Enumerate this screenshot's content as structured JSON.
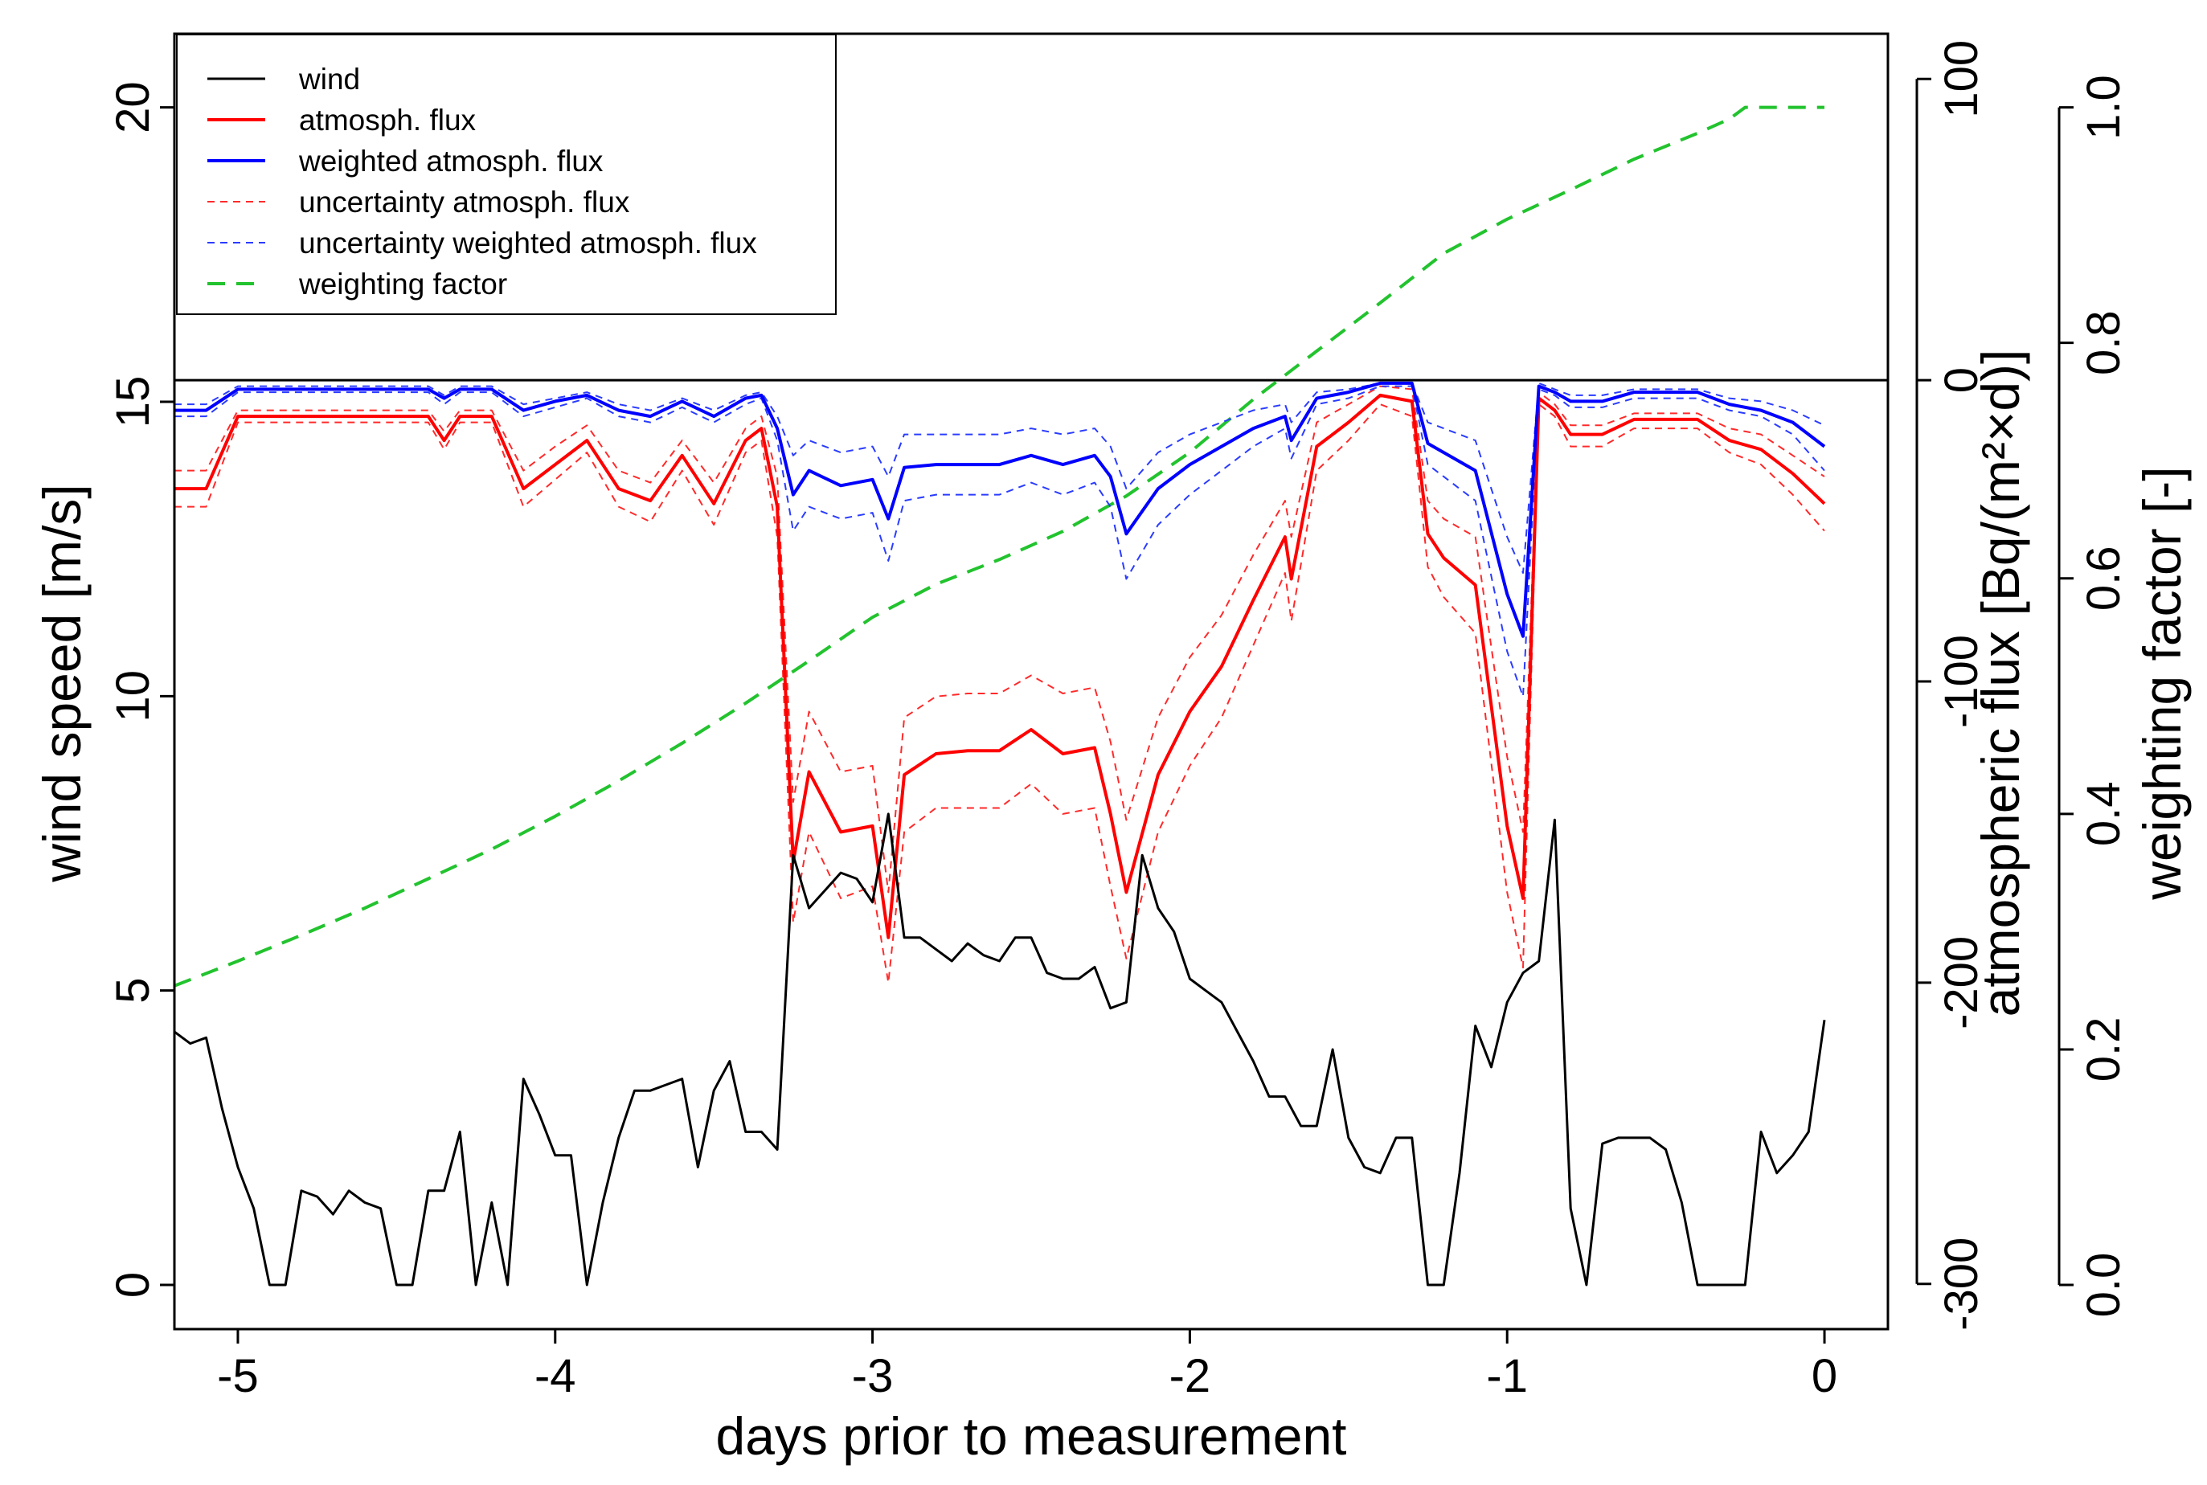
{
  "chart_data": {
    "type": "line",
    "xlabel": "days prior to measurement",
    "ylabel": "wind speed [m/s]",
    "y2label": "atmospheric flux [Bq/(m²×d)]",
    "y3label": "weighting factor [-]",
    "xlim": [
      -5.2,
      0.2
    ],
    "ylim": [
      -0.75,
      21.25
    ],
    "y2lim": [
      -315,
      115
    ],
    "y3lim": [
      0,
      1
    ],
    "x_ticks": [
      -5,
      -4,
      -3,
      -2,
      -1,
      0
    ],
    "y_ticks": [
      0,
      5,
      10,
      15,
      20
    ],
    "y2_ticks": [
      -300,
      -200,
      -100,
      0,
      100
    ],
    "y3_ticks": [
      0.0,
      0.2,
      0.4,
      0.6,
      0.8,
      1.0
    ],
    "x_tick_labels": [
      "-5",
      "-4",
      "-3",
      "-2",
      "-1",
      "0"
    ],
    "y_tick_labels": [
      "0",
      "5",
      "10",
      "15",
      "20"
    ],
    "y2_tick_labels": [
      "-300",
      "-200",
      "-100",
      "0",
      "100"
    ],
    "y3_tick_labels": [
      "0.0",
      "0.2",
      "0.4",
      "0.6",
      "0.8",
      "1.0"
    ],
    "reference_line": {
      "axis": "y2",
      "value": 0
    },
    "legend": {
      "position": "top-left",
      "entries": [
        "wind",
        "atmosph. flux",
        "weighted atmosph. flux",
        "uncertainty atmosph. flux",
        "uncertainty weighted atmosph. flux",
        "weighting factor"
      ]
    },
    "series": [
      {
        "name": "weighting factor",
        "axis": "y3",
        "color": "#22c32e",
        "dash": "dashed-long",
        "width": 4,
        "x": [
          -5.2,
          -5.0,
          -4.8,
          -4.6,
          -4.4,
          -4.2,
          -4.0,
          -3.8,
          -3.6,
          -3.4,
          -3.2,
          -3.0,
          -2.8,
          -2.6,
          -2.4,
          -2.2,
          -2.0,
          -1.8,
          -1.6,
          -1.4,
          -1.2,
          -1.0,
          -0.8,
          -0.6,
          -0.4,
          -0.3,
          -0.25,
          0.0
        ],
        "y": [
          0.254,
          0.275,
          0.297,
          0.32,
          0.345,
          0.37,
          0.398,
          0.428,
          0.46,
          0.494,
          0.53,
          0.567,
          0.595,
          0.616,
          0.64,
          0.67,
          0.707,
          0.752,
          0.793,
          0.834,
          0.876,
          0.905,
          0.93,
          0.956,
          0.978,
          0.99,
          1.0,
          1.0
        ]
      },
      {
        "name": "uncertainty atmosph. flux",
        "axis": "y2",
        "color": "#ff2a2a",
        "dash": "dashed-fine",
        "width": 2,
        "x": [
          -5.2,
          -5.1,
          -5.0,
          -4.8,
          -4.6,
          -4.4,
          -4.35,
          -4.3,
          -4.2,
          -4.1,
          -4.0,
          -3.9,
          -3.8,
          -3.7,
          -3.6,
          -3.5,
          -3.4,
          -3.35,
          -3.3,
          -3.25,
          -3.2,
          -3.1,
          -3.0,
          -2.95,
          -2.9,
          -2.8,
          -2.7,
          -2.6,
          -2.5,
          -2.4,
          -2.3,
          -2.25,
          -2.2,
          -2.1,
          -2.0,
          -1.9,
          -1.8,
          -1.7,
          -1.68,
          -1.6,
          -1.5,
          -1.4,
          -1.3,
          -1.25,
          -1.2,
          -1.1,
          -1.0,
          -0.95,
          -0.9,
          -0.85,
          -0.8,
          -0.7,
          -0.6,
          -0.5,
          -0.4,
          -0.3,
          -0.2,
          -0.1,
          0.0
        ],
        "y": [
          -30,
          -30,
          -10,
          -10,
          -10,
          -10,
          -17,
          -10,
          -10,
          -30,
          -22,
          -15,
          -30,
          -34,
          -20,
          -34,
          -16,
          -12,
          -32,
          -140,
          -110,
          -130,
          -128,
          -170,
          -112,
          -105,
          -104,
          -104,
          -98,
          -104,
          -102,
          -120,
          -146,
          -112,
          -92,
          -78,
          -58,
          -40,
          -52,
          -14,
          -8,
          -2,
          -3,
          -40,
          -46,
          -52,
          -125,
          -150,
          -4,
          -8,
          -15,
          -15,
          -11,
          -11,
          -11,
          -16,
          -18,
          -25,
          -32
        ]
      },
      {
        "name": "uncertainty atmosph. flux",
        "axis": "y2",
        "color": "#ff2a2a",
        "dash": "dashed-fine",
        "width": 2,
        "x": [
          -5.2,
          -5.1,
          -5.0,
          -4.8,
          -4.6,
          -4.4,
          -4.35,
          -4.3,
          -4.2,
          -4.1,
          -4.0,
          -3.9,
          -3.8,
          -3.7,
          -3.6,
          -3.5,
          -3.4,
          -3.35,
          -3.3,
          -3.25,
          -3.2,
          -3.1,
          -3.0,
          -2.95,
          -2.9,
          -2.8,
          -2.7,
          -2.6,
          -2.5,
          -2.4,
          -2.3,
          -2.25,
          -2.2,
          -2.1,
          -2.0,
          -1.9,
          -1.8,
          -1.7,
          -1.68,
          -1.6,
          -1.5,
          -1.4,
          -1.3,
          -1.25,
          -1.2,
          -1.1,
          -1.0,
          -0.95,
          -0.9,
          -0.85,
          -0.8,
          -0.7,
          -0.6,
          -0.5,
          -0.4,
          -0.3,
          -0.2,
          -0.1,
          0.0
        ],
        "y": [
          -42,
          -42,
          -14,
          -14,
          -14,
          -14,
          -23,
          -14,
          -14,
          -42,
          -33,
          -24,
          -42,
          -47,
          -30,
          -48,
          -24,
          -20,
          -52,
          -180,
          -150,
          -172,
          -168,
          -200,
          -150,
          -142,
          -142,
          -142,
          -134,
          -144,
          -142,
          -168,
          -192,
          -150,
          -128,
          -112,
          -88,
          -64,
          -80,
          -30,
          -20,
          -8,
          -12,
          -62,
          -72,
          -84,
          -170,
          -195,
          -8,
          -12,
          -22,
          -22,
          -16,
          -16,
          -16,
          -24,
          -28,
          -38,
          -50
        ]
      },
      {
        "name": "uncertainty weighted atmosph. flux",
        "axis": "y2",
        "color": "#2a3cff",
        "dash": "dashed-fine",
        "width": 2,
        "x": [
          -5.2,
          -5.1,
          -5.0,
          -4.8,
          -4.6,
          -4.4,
          -4.35,
          -4.3,
          -4.2,
          -4.1,
          -4.0,
          -3.9,
          -3.8,
          -3.7,
          -3.6,
          -3.5,
          -3.4,
          -3.35,
          -3.3,
          -3.25,
          -3.2,
          -3.1,
          -3.0,
          -2.95,
          -2.9,
          -2.8,
          -2.7,
          -2.6,
          -2.5,
          -2.4,
          -2.3,
          -2.25,
          -2.2,
          -2.1,
          -2.0,
          -1.9,
          -1.8,
          -1.7,
          -1.68,
          -1.6,
          -1.5,
          -1.4,
          -1.3,
          -1.25,
          -1.2,
          -1.1,
          -1.0,
          -0.95,
          -0.9,
          -0.85,
          -0.8,
          -0.7,
          -0.6,
          -0.5,
          -0.4,
          -0.3,
          -0.2,
          -0.1,
          0.0
        ],
        "y": [
          -8,
          -8,
          -2,
          -2,
          -2,
          -2,
          -5,
          -2,
          -2,
          -8,
          -6,
          -4,
          -8,
          -10,
          -6,
          -10,
          -5,
          -4,
          -12,
          -25,
          -20,
          -24,
          -22,
          -32,
          -18,
          -18,
          -18,
          -18,
          -16,
          -18,
          -16,
          -22,
          -36,
          -24,
          -18,
          -14,
          -10,
          -8,
          -14,
          -4,
          -3,
          -1,
          -1,
          -14,
          -16,
          -20,
          -52,
          -64,
          -1,
          -3,
          -5,
          -5,
          -3,
          -3,
          -3,
          -6,
          -7,
          -10,
          -15
        ]
      },
      {
        "name": "uncertainty weighted atmosph. flux",
        "axis": "y2",
        "color": "#2a3cff",
        "dash": "dashed-fine",
        "width": 2,
        "x": [
          -5.2,
          -5.1,
          -5.0,
          -4.8,
          -4.6,
          -4.4,
          -4.35,
          -4.3,
          -4.2,
          -4.1,
          -4.0,
          -3.9,
          -3.8,
          -3.7,
          -3.6,
          -3.5,
          -3.4,
          -3.35,
          -3.3,
          -3.25,
          -3.2,
          -3.1,
          -3.0,
          -2.95,
          -2.9,
          -2.8,
          -2.7,
          -2.6,
          -2.5,
          -2.4,
          -2.3,
          -2.25,
          -2.2,
          -2.1,
          -2.0,
          -1.9,
          -1.8,
          -1.7,
          -1.68,
          -1.6,
          -1.5,
          -1.4,
          -1.3,
          -1.25,
          -1.2,
          -1.1,
          -1.0,
          -0.95,
          -0.9,
          -0.85,
          -0.8,
          -0.7,
          -0.6,
          -0.5,
          -0.4,
          -0.3,
          -0.2,
          -0.1,
          0.0
        ],
        "y": [
          -12,
          -12,
          -4,
          -4,
          -4,
          -4,
          -8,
          -4,
          -4,
          -12,
          -9,
          -6,
          -12,
          -14,
          -9,
          -14,
          -8,
          -6,
          -20,
          -50,
          -42,
          -46,
          -44,
          -60,
          -40,
          -38,
          -38,
          -38,
          -34,
          -38,
          -34,
          -42,
          -66,
          -48,
          -38,
          -30,
          -22,
          -16,
          -26,
          -8,
          -6,
          -2,
          -2,
          -28,
          -32,
          -40,
          -90,
          -105,
          -3,
          -5,
          -9,
          -9,
          -6,
          -6,
          -6,
          -10,
          -12,
          -18,
          -30
        ]
      },
      {
        "name": "atmosph. flux",
        "axis": "y2",
        "color": "#ff0000",
        "dash": "solid",
        "width": 4,
        "x": [
          -5.2,
          -5.1,
          -5.0,
          -4.8,
          -4.6,
          -4.4,
          -4.35,
          -4.3,
          -4.2,
          -4.1,
          -4.0,
          -3.9,
          -3.8,
          -3.7,
          -3.6,
          -3.5,
          -3.4,
          -3.35,
          -3.3,
          -3.25,
          -3.2,
          -3.1,
          -3.0,
          -2.95,
          -2.9,
          -2.8,
          -2.7,
          -2.6,
          -2.5,
          -2.4,
          -2.3,
          -2.25,
          -2.2,
          -2.1,
          -2.0,
          -1.9,
          -1.8,
          -1.7,
          -1.68,
          -1.6,
          -1.5,
          -1.4,
          -1.3,
          -1.25,
          -1.2,
          -1.1,
          -1.0,
          -0.95,
          -0.9,
          -0.85,
          -0.8,
          -0.7,
          -0.6,
          -0.5,
          -0.4,
          -0.3,
          -0.2,
          -0.1,
          0.0
        ],
        "y": [
          -36,
          -36,
          -12,
          -12,
          -12,
          -12,
          -20,
          -12,
          -12,
          -36,
          -28,
          -20,
          -36,
          -40,
          -25,
          -41,
          -20,
          -16,
          -42,
          -160,
          -130,
          -150,
          -148,
          -185,
          -131,
          -124,
          -123,
          -123,
          -116,
          -124,
          -122,
          -144,
          -170,
          -131,
          -110,
          -95,
          -73,
          -52,
          -66,
          -22,
          -14,
          -5,
          -7,
          -51,
          -59,
          -68,
          -148,
          -172,
          -6,
          -10,
          -18,
          -18,
          -13,
          -13,
          -13,
          -20,
          -23,
          -31,
          -41
        ]
      },
      {
        "name": "weighted atmosph. flux",
        "axis": "y2",
        "color": "#0000ff",
        "dash": "solid",
        "width": 4,
        "x": [
          -5.2,
          -5.1,
          -5.0,
          -4.8,
          -4.6,
          -4.4,
          -4.35,
          -4.3,
          -4.2,
          -4.1,
          -4.0,
          -3.9,
          -3.8,
          -3.7,
          -3.6,
          -3.5,
          -3.4,
          -3.35,
          -3.3,
          -3.25,
          -3.2,
          -3.1,
          -3.0,
          -2.95,
          -2.9,
          -2.8,
          -2.7,
          -2.6,
          -2.5,
          -2.4,
          -2.3,
          -2.25,
          -2.2,
          -2.1,
          -2.0,
          -1.9,
          -1.8,
          -1.7,
          -1.68,
          -1.6,
          -1.5,
          -1.4,
          -1.3,
          -1.25,
          -1.2,
          -1.1,
          -1.0,
          -0.95,
          -0.9,
          -0.85,
          -0.8,
          -0.7,
          -0.6,
          -0.5,
          -0.4,
          -0.3,
          -0.2,
          -0.1,
          0.0
        ],
        "y": [
          -10,
          -10,
          -3,
          -3,
          -3,
          -3,
          -6,
          -3,
          -3,
          -10,
          -7,
          -5,
          -10,
          -12,
          -7,
          -12,
          -6,
          -5,
          -16,
          -38,
          -30,
          -35,
          -33,
          -46,
          -29,
          -28,
          -28,
          -28,
          -25,
          -28,
          -25,
          -32,
          -51,
          -36,
          -28,
          -22,
          -16,
          -12,
          -20,
          -6,
          -4,
          -1,
          -1,
          -21,
          -24,
          -30,
          -71,
          -85,
          -2,
          -4,
          -7,
          -7,
          -4,
          -4,
          -4,
          -8,
          -10,
          -14,
          -22
        ]
      },
      {
        "name": "wind",
        "axis": "y",
        "color": "#000000",
        "dash": "solid",
        "width": 3,
        "x": [
          -5.2,
          -5.15,
          -5.1,
          -5.05,
          -5.0,
          -4.95,
          -4.9,
          -4.85,
          -4.8,
          -4.75,
          -4.7,
          -4.65,
          -4.6,
          -4.55,
          -4.5,
          -4.45,
          -4.4,
          -4.35,
          -4.3,
          -4.25,
          -4.2,
          -4.15,
          -4.1,
          -4.05,
          -4.0,
          -3.95,
          -3.9,
          -3.85,
          -3.8,
          -3.75,
          -3.7,
          -3.65,
          -3.6,
          -3.55,
          -3.5,
          -3.45,
          -3.4,
          -3.35,
          -3.3,
          -3.25,
          -3.2,
          -3.15,
          -3.1,
          -3.05,
          -3.0,
          -2.95,
          -2.9,
          -2.85,
          -2.8,
          -2.75,
          -2.7,
          -2.65,
          -2.6,
          -2.55,
          -2.5,
          -2.45,
          -2.4,
          -2.35,
          -2.3,
          -2.25,
          -2.2,
          -2.15,
          -2.1,
          -2.05,
          -2.0,
          -1.95,
          -1.9,
          -1.85,
          -1.8,
          -1.75,
          -1.7,
          -1.65,
          -1.6,
          -1.55,
          -1.5,
          -1.45,
          -1.4,
          -1.35,
          -1.3,
          -1.25,
          -1.2,
          -1.15,
          -1.1,
          -1.05,
          -1.0,
          -0.95,
          -0.9,
          -0.85,
          -0.8,
          -0.75,
          -0.7,
          -0.65,
          -0.6,
          -0.55,
          -0.5,
          -0.45,
          -0.4,
          -0.35,
          -0.3,
          -0.25,
          -0.2,
          -0.15,
          -0.1,
          -0.05,
          0.0
        ],
        "y": [
          4.3,
          4.1,
          4.2,
          3.0,
          2.0,
          1.3,
          0.0,
          0.0,
          1.6,
          1.5,
          1.2,
          1.6,
          1.4,
          1.3,
          0.0,
          0.0,
          1.6,
          1.6,
          2.6,
          0.0,
          1.4,
          0.0,
          3.5,
          2.9,
          2.2,
          2.2,
          0.0,
          1.4,
          2.5,
          3.3,
          3.3,
          3.4,
          3.5,
          2.0,
          3.3,
          3.8,
          2.6,
          2.6,
          2.3,
          7.3,
          6.4,
          6.7,
          7.0,
          6.9,
          6.5,
          8.0,
          5.9,
          5.9,
          5.7,
          5.5,
          5.8,
          5.6,
          5.5,
          5.9,
          5.9,
          5.3,
          5.2,
          5.2,
          5.4,
          4.7,
          4.8,
          7.3,
          6.4,
          6.0,
          5.2,
          5.0,
          4.8,
          4.3,
          3.8,
          3.2,
          3.2,
          2.7,
          2.7,
          4.0,
          2.5,
          2.0,
          1.9,
          2.5,
          2.5,
          0.0,
          0.0,
          1.9,
          4.4,
          3.7,
          4.8,
          5.3,
          5.5,
          7.9,
          1.3,
          0.0,
          2.4,
          2.5,
          2.5,
          2.5,
          2.3,
          1.4,
          0.0,
          0.0,
          0.0,
          0.0,
          2.6,
          1.9,
          2.2,
          2.6,
          4.5
        ]
      }
    ]
  }
}
